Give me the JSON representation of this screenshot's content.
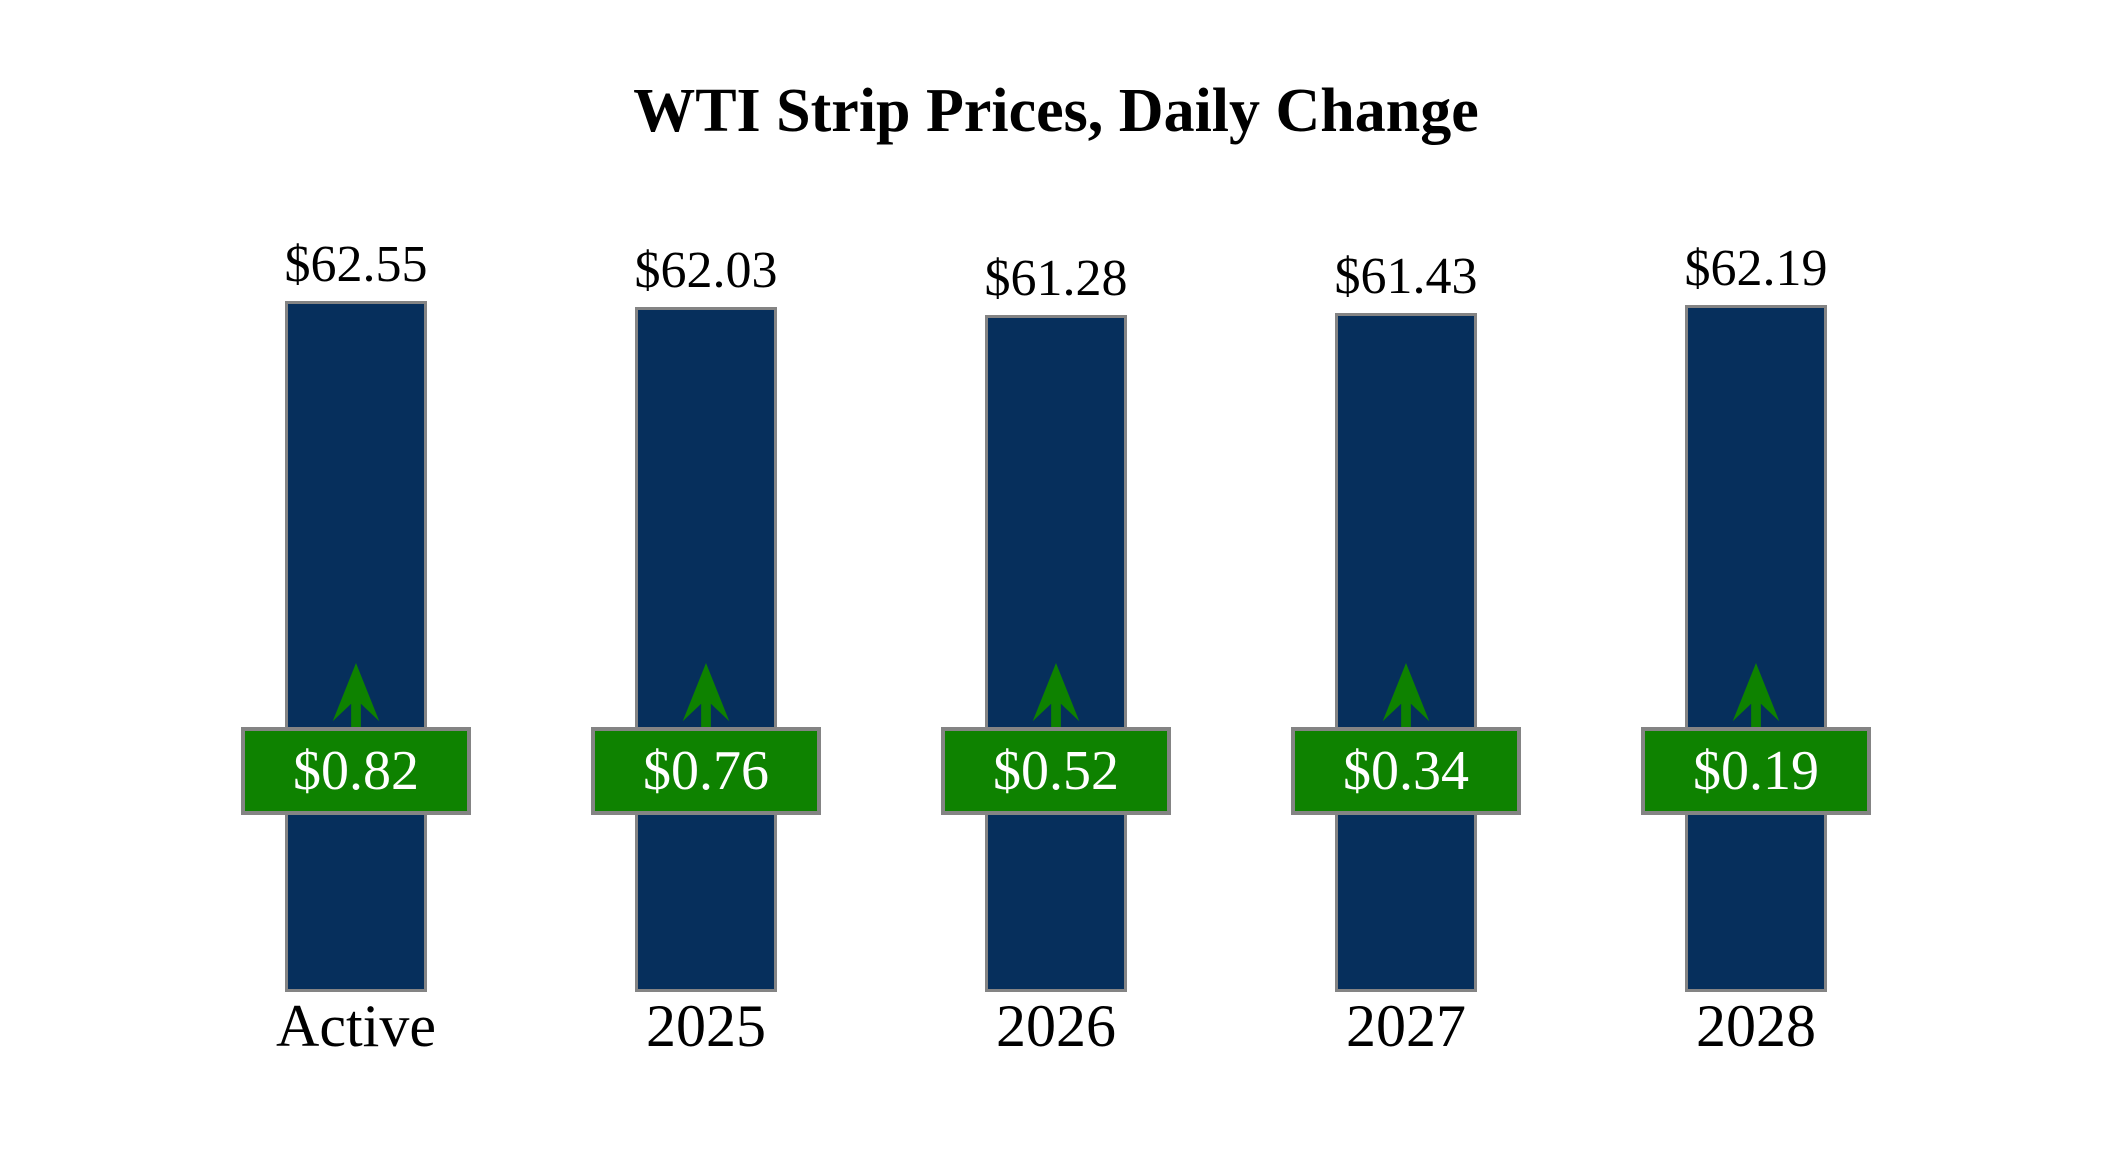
{
  "title": "WTI Strip Prices, Daily Change",
  "chart_data": {
    "type": "bar",
    "title": "WTI Strip Prices, Daily Change",
    "categories": [
      "Active",
      "2025",
      "2026",
      "2027",
      "2028"
    ],
    "series": [
      {
        "name": "Strip Price",
        "values": [
          62.55,
          62.03,
          61.28,
          61.43,
          62.19
        ]
      },
      {
        "name": "Daily Change",
        "values": [
          0.82,
          0.76,
          0.52,
          0.34,
          0.19
        ]
      }
    ],
    "points": [
      {
        "category": "Active",
        "price": 62.55,
        "price_label": "$62.55",
        "change": 0.82,
        "change_label": "$0.82",
        "direction": "up"
      },
      {
        "category": "2025",
        "price": 62.03,
        "price_label": "$62.03",
        "change": 0.76,
        "change_label": "$0.76",
        "direction": "up"
      },
      {
        "category": "2026",
        "price": 61.28,
        "price_label": "$61.28",
        "change": 0.52,
        "change_label": "$0.52",
        "direction": "up"
      },
      {
        "category": "2027",
        "price": 61.43,
        "price_label": "$61.43",
        "change": 0.34,
        "change_label": "$0.34",
        "direction": "up"
      },
      {
        "category": "2028",
        "price": 62.19,
        "price_label": "$62.19",
        "change": 0.19,
        "change_label": "$0.19",
        "direction": "up"
      }
    ],
    "ylim": [
      0,
      62.55
    ],
    "grid": false,
    "legend_position": "none",
    "colors": {
      "bar": "#062F5C",
      "badge": "#0E8200",
      "arrow": "#0E8200",
      "border": "#848484",
      "badge_text": "#FFFFFF",
      "label_text": "#000000"
    }
  }
}
